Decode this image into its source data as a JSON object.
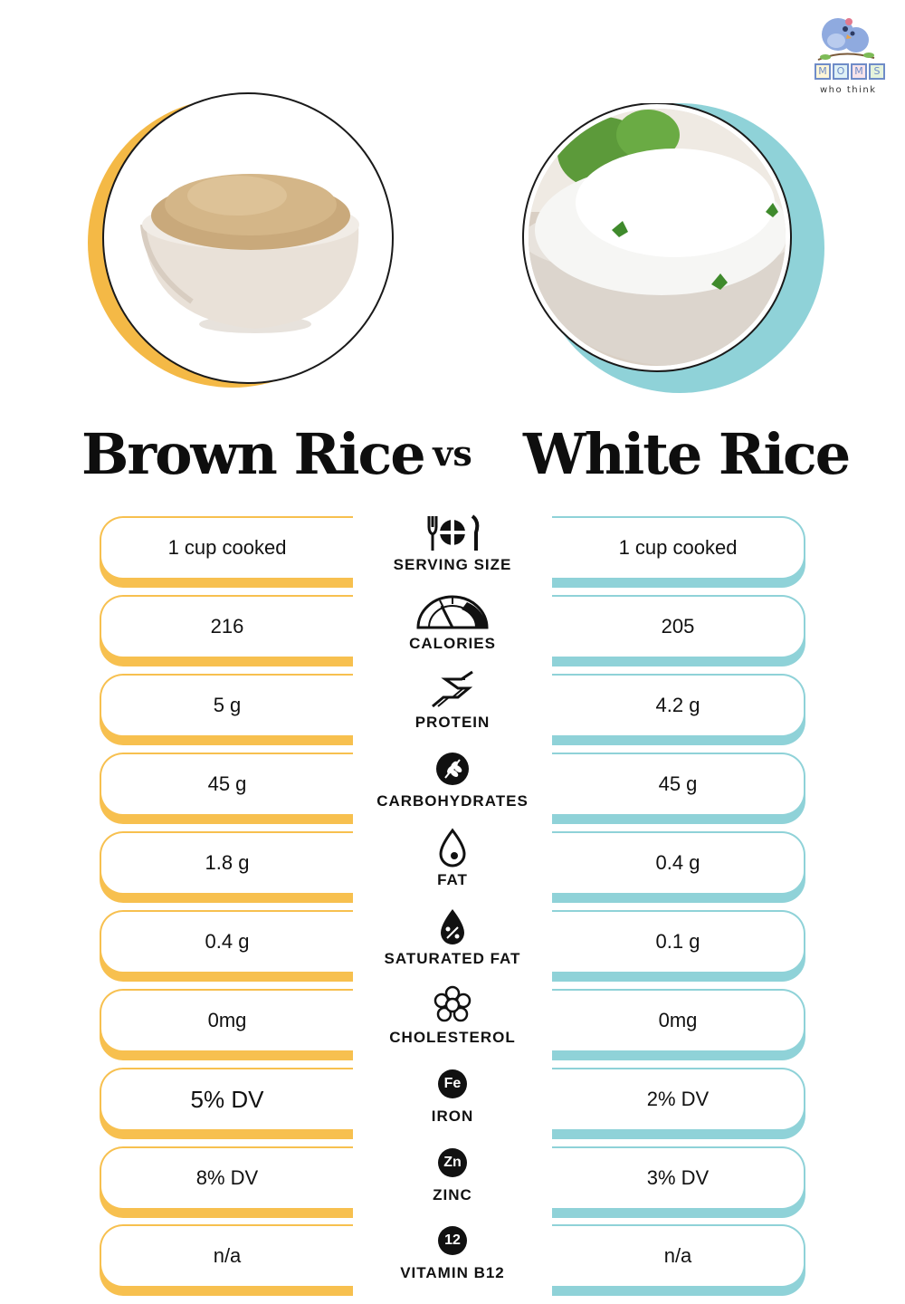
{
  "logo": {
    "letters": [
      "M",
      "O",
      "M",
      "S"
    ],
    "tagline": "who think"
  },
  "colors": {
    "brown_accent": "#f7c04f",
    "white_accent": "#8fd2d8"
  },
  "header": {
    "left_title": "Brown Rice",
    "vs": "vs",
    "right_title": "White Rice"
  },
  "rows": [
    {
      "label": "SERVING SIZE",
      "icon": "fork-knife-plate-icon",
      "brown": "1 cup cooked",
      "white": "1 cup cooked"
    },
    {
      "label": "CALORIES",
      "icon": "gauge-icon",
      "brown": "216",
      "white": "205"
    },
    {
      "label": "PROTEIN",
      "icon": "protein-chain-icon",
      "brown": "5 g",
      "white": "4.2 g"
    },
    {
      "label": "CARBOHYDRATES",
      "icon": "wheat-icon",
      "brown": "45 g",
      "white": "45 g"
    },
    {
      "label": "FAT",
      "icon": "oil-drop-icon",
      "brown": "1.8 g",
      "white": "0.4 g"
    },
    {
      "label": "SATURATED FAT",
      "icon": "percent-drop-icon",
      "brown": "0.4 g",
      "white": "0.1 g"
    },
    {
      "label": "CHOLESTEROL",
      "icon": "molecule-icon",
      "brown": "0mg",
      "white": "0mg"
    },
    {
      "label": "IRON",
      "icon": "iron-badge-icon",
      "badge": "Fe",
      "brown": "5% DV",
      "white": "2% DV"
    },
    {
      "label": "ZINC",
      "icon": "zinc-badge-icon",
      "badge": "Zn",
      "brown": "8% DV",
      "white": "3% DV"
    },
    {
      "label": "VITAMIN B12",
      "icon": "b12-badge-icon",
      "badge": "12",
      "brown": "n/a",
      "white": "n/a"
    }
  ]
}
